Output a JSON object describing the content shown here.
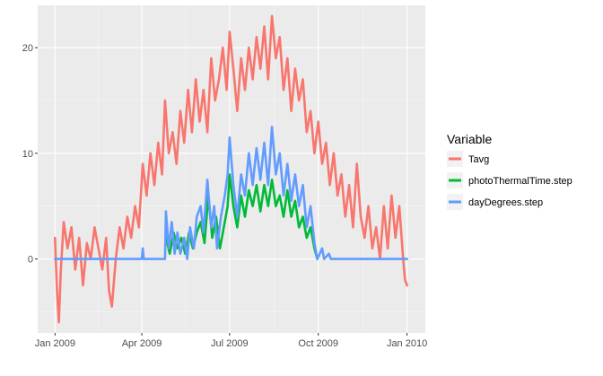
{
  "chart_data": {
    "type": "line",
    "x_ticks": [
      {
        "date": "2009-01-01",
        "label": "Jan 2009"
      },
      {
        "date": "2009-04-01",
        "label": "Apr 2009"
      },
      {
        "date": "2009-07-01",
        "label": "Jul 2009"
      },
      {
        "date": "2009-10-01",
        "label": "Oct 2009"
      },
      {
        "date": "2010-01-01",
        "label": "Jan 2010"
      }
    ],
    "y_ticks": [
      0,
      10,
      20
    ],
    "xlim": [
      "2008-12-14",
      "2010-01-20"
    ],
    "ylim": [
      -7,
      24
    ],
    "grid": true,
    "legend": {
      "title": "Variable",
      "placement": "right",
      "entries": [
        "Tavg",
        "photoThermalTime.step",
        "dayDegrees.step"
      ]
    },
    "series": [
      {
        "name": "Tavg",
        "color": "#F8766D",
        "points": [
          [
            "2009-01-01",
            2.0
          ],
          [
            "2009-01-03",
            -3.0
          ],
          [
            "2009-01-05",
            -6.0
          ],
          [
            "2009-01-07",
            -1.0
          ],
          [
            "2009-01-10",
            3.5
          ],
          [
            "2009-01-14",
            1.0
          ],
          [
            "2009-01-18",
            3.0
          ],
          [
            "2009-01-22",
            -1.0
          ],
          [
            "2009-01-26",
            2.0
          ],
          [
            "2009-01-30",
            -2.5
          ],
          [
            "2009-02-03",
            1.5
          ],
          [
            "2009-02-07",
            0.0
          ],
          [
            "2009-02-11",
            3.0
          ],
          [
            "2009-02-15",
            1.0
          ],
          [
            "2009-02-19",
            -1.0
          ],
          [
            "2009-02-23",
            2.0
          ],
          [
            "2009-02-26",
            -3.0
          ],
          [
            "2009-03-01",
            -4.5
          ],
          [
            "2009-03-05",
            0.0
          ],
          [
            "2009-03-09",
            3.0
          ],
          [
            "2009-03-13",
            1.0
          ],
          [
            "2009-03-17",
            4.0
          ],
          [
            "2009-03-21",
            2.0
          ],
          [
            "2009-03-25",
            5.0
          ],
          [
            "2009-03-29",
            3.0
          ],
          [
            "2009-04-02",
            9.0
          ],
          [
            "2009-04-06",
            6.0
          ],
          [
            "2009-04-10",
            10.0
          ],
          [
            "2009-04-14",
            7.0
          ],
          [
            "2009-04-18",
            11.0
          ],
          [
            "2009-04-22",
            8.0
          ],
          [
            "2009-04-25",
            15.0
          ],
          [
            "2009-04-29",
            10.0
          ],
          [
            "2009-05-03",
            12.0
          ],
          [
            "2009-05-07",
            9.0
          ],
          [
            "2009-05-11",
            14.0
          ],
          [
            "2009-05-15",
            11.0
          ],
          [
            "2009-05-19",
            16.0
          ],
          [
            "2009-05-23",
            12.0
          ],
          [
            "2009-05-27",
            17.0
          ],
          [
            "2009-05-31",
            13.0
          ],
          [
            "2009-06-04",
            16.0
          ],
          [
            "2009-06-08",
            12.0
          ],
          [
            "2009-06-12",
            19.0
          ],
          [
            "2009-06-16",
            15.0
          ],
          [
            "2009-06-20",
            17.0
          ],
          [
            "2009-06-24",
            20.0
          ],
          [
            "2009-06-28",
            16.0
          ],
          [
            "2009-07-01",
            21.5
          ],
          [
            "2009-07-05",
            18.0
          ],
          [
            "2009-07-09",
            14.0
          ],
          [
            "2009-07-13",
            19.0
          ],
          [
            "2009-07-17",
            16.0
          ],
          [
            "2009-07-21",
            20.0
          ],
          [
            "2009-07-25",
            17.0
          ],
          [
            "2009-07-29",
            21.0
          ],
          [
            "2009-08-02",
            18.0
          ],
          [
            "2009-08-06",
            22.0
          ],
          [
            "2009-08-10",
            17.0
          ],
          [
            "2009-08-14",
            23.0
          ],
          [
            "2009-08-18",
            19.0
          ],
          [
            "2009-08-22",
            21.0
          ],
          [
            "2009-08-26",
            16.0
          ],
          [
            "2009-08-30",
            19.0
          ],
          [
            "2009-09-03",
            14.0
          ],
          [
            "2009-09-07",
            18.0
          ],
          [
            "2009-09-11",
            15.0
          ],
          [
            "2009-09-15",
            17.0
          ],
          [
            "2009-09-19",
            12.0
          ],
          [
            "2009-09-23",
            14.0
          ],
          [
            "2009-09-27",
            10.0
          ],
          [
            "2009-10-01",
            13.0
          ],
          [
            "2009-10-05",
            9.0
          ],
          [
            "2009-10-09",
            11.0
          ],
          [
            "2009-10-13",
            7.0
          ],
          [
            "2009-10-17",
            10.0
          ],
          [
            "2009-10-21",
            6.0
          ],
          [
            "2009-10-25",
            8.0
          ],
          [
            "2009-10-29",
            4.0
          ],
          [
            "2009-11-02",
            7.0
          ],
          [
            "2009-11-06",
            3.0
          ],
          [
            "2009-11-10",
            9.0
          ],
          [
            "2009-11-14",
            4.0
          ],
          [
            "2009-11-18",
            2.0
          ],
          [
            "2009-11-22",
            5.0
          ],
          [
            "2009-11-26",
            1.0
          ],
          [
            "2009-11-30",
            3.0
          ],
          [
            "2009-12-04",
            0.0
          ],
          [
            "2009-12-08",
            5.0
          ],
          [
            "2009-12-12",
            1.0
          ],
          [
            "2009-12-16",
            6.0
          ],
          [
            "2009-12-20",
            2.0
          ],
          [
            "2009-12-24",
            5.0
          ],
          [
            "2009-12-28",
            0.0
          ],
          [
            "2009-12-30",
            -2.0
          ],
          [
            "2010-01-01",
            -2.5
          ]
        ]
      },
      {
        "name": "photoThermalTime.step",
        "color": "#00BA38",
        "points": [
          [
            "2009-04-26",
            2.0
          ],
          [
            "2009-04-30",
            0.5
          ],
          [
            "2009-05-04",
            2.5
          ],
          [
            "2009-05-08",
            1.0
          ],
          [
            "2009-05-12",
            2.0
          ],
          [
            "2009-05-16",
            0.5
          ],
          [
            "2009-05-20",
            2.5
          ],
          [
            "2009-05-24",
            1.0
          ],
          [
            "2009-05-28",
            2.5
          ],
          [
            "2009-06-01",
            3.5
          ],
          [
            "2009-06-05",
            1.5
          ],
          [
            "2009-06-09",
            6.0
          ],
          [
            "2009-06-13",
            2.0
          ],
          [
            "2009-06-17",
            4.0
          ],
          [
            "2009-06-21",
            1.0
          ],
          [
            "2009-06-25",
            3.0
          ],
          [
            "2009-06-29",
            5.0
          ],
          [
            "2009-07-01",
            8.0
          ],
          [
            "2009-07-05",
            5.0
          ],
          [
            "2009-07-09",
            3.0
          ],
          [
            "2009-07-13",
            6.0
          ],
          [
            "2009-07-17",
            4.0
          ],
          [
            "2009-07-21",
            6.5
          ],
          [
            "2009-07-25",
            5.0
          ],
          [
            "2009-07-29",
            7.0
          ],
          [
            "2009-08-02",
            4.5
          ],
          [
            "2009-08-06",
            7.0
          ],
          [
            "2009-08-10",
            5.0
          ],
          [
            "2009-08-14",
            7.5
          ],
          [
            "2009-08-18",
            5.0
          ],
          [
            "2009-08-22",
            6.0
          ],
          [
            "2009-08-26",
            4.0
          ],
          [
            "2009-08-30",
            6.5
          ],
          [
            "2009-09-03",
            4.0
          ],
          [
            "2009-09-07",
            5.5
          ],
          [
            "2009-09-11",
            3.0
          ],
          [
            "2009-09-15",
            4.0
          ],
          [
            "2009-09-19",
            2.0
          ],
          [
            "2009-09-23",
            3.0
          ],
          [
            "2009-09-27",
            1.0
          ],
          [
            "2009-09-30",
            0.0
          ]
        ]
      },
      {
        "name": "dayDegrees.step",
        "color": "#619CFF",
        "points": [
          [
            "2009-01-01",
            0.0
          ],
          [
            "2009-04-01",
            0.0
          ],
          [
            "2009-04-02",
            1.0
          ],
          [
            "2009-04-03",
            0.0
          ],
          [
            "2009-04-25",
            0.0
          ],
          [
            "2009-04-26",
            4.5
          ],
          [
            "2009-04-29",
            1.0
          ],
          [
            "2009-05-02",
            3.5
          ],
          [
            "2009-05-05",
            0.5
          ],
          [
            "2009-05-08",
            2.5
          ],
          [
            "2009-05-11",
            0.5
          ],
          [
            "2009-05-15",
            2.0
          ],
          [
            "2009-05-18",
            0.0
          ],
          [
            "2009-05-21",
            3.0
          ],
          [
            "2009-05-25",
            1.0
          ],
          [
            "2009-05-28",
            4.0
          ],
          [
            "2009-06-01",
            5.0
          ],
          [
            "2009-06-04",
            2.5
          ],
          [
            "2009-06-08",
            7.5
          ],
          [
            "2009-06-12",
            3.0
          ],
          [
            "2009-06-15",
            5.0
          ],
          [
            "2009-06-18",
            1.0
          ],
          [
            "2009-06-22",
            4.0
          ],
          [
            "2009-06-26",
            6.0
          ],
          [
            "2009-06-29",
            8.0
          ],
          [
            "2009-07-01",
            11.5
          ],
          [
            "2009-07-05",
            7.0
          ],
          [
            "2009-07-09",
            4.0
          ],
          [
            "2009-07-13",
            8.0
          ],
          [
            "2009-07-17",
            6.0
          ],
          [
            "2009-07-21",
            10.0
          ],
          [
            "2009-07-25",
            7.0
          ],
          [
            "2009-07-29",
            10.5
          ],
          [
            "2009-08-02",
            7.5
          ],
          [
            "2009-08-06",
            11.0
          ],
          [
            "2009-08-10",
            7.0
          ],
          [
            "2009-08-14",
            12.5
          ],
          [
            "2009-08-18",
            8.0
          ],
          [
            "2009-08-22",
            10.0
          ],
          [
            "2009-08-26",
            6.0
          ],
          [
            "2009-08-30",
            9.0
          ],
          [
            "2009-09-03",
            5.5
          ],
          [
            "2009-09-07",
            8.0
          ],
          [
            "2009-09-11",
            5.0
          ],
          [
            "2009-09-15",
            7.0
          ],
          [
            "2009-09-19",
            3.0
          ],
          [
            "2009-09-23",
            5.0
          ],
          [
            "2009-09-27",
            1.5
          ],
          [
            "2009-09-30",
            0.0
          ],
          [
            "2009-10-05",
            1.0
          ],
          [
            "2009-10-07",
            0.0
          ],
          [
            "2009-10-12",
            0.5
          ],
          [
            "2009-10-14",
            0.0
          ],
          [
            "2010-01-01",
            0.0
          ]
        ]
      }
    ]
  }
}
